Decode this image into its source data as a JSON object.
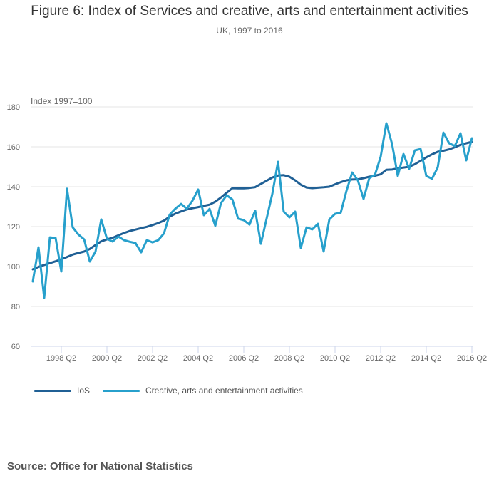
{
  "title": "Figure 6: Index of Services and creative, arts and entertainment activities",
  "subtitle": "UK, 1997 to 2016",
  "source": "Source: Office for National Statistics",
  "colors": {
    "ios": "#206095",
    "creative": "#27a0cc",
    "grid": "#e6e6e6",
    "axis": "#ccd6eb"
  },
  "legend": [
    {
      "name": "IoS",
      "color": "#206095"
    },
    {
      "name": "Creative, arts and entertainment activities",
      "color": "#27a0cc"
    }
  ],
  "chart_data": {
    "type": "line",
    "title": "Figure 6: Index of Services and creative, arts and entertainment activities",
    "subtitle": "UK, 1997 to 2016",
    "xlabel": "",
    "ylabel": "Index 1997=100",
    "ylim": [
      60,
      180
    ],
    "yticks": [
      60,
      80,
      100,
      120,
      140,
      160,
      180
    ],
    "x_start": "1997 Q1",
    "x_end": "2016 Q2",
    "xticks": [
      "1998 Q2",
      "2000 Q2",
      "2002 Q2",
      "2004 Q2",
      "2006 Q2",
      "2008 Q2",
      "2010 Q2",
      "2012 Q2",
      "2014 Q2",
      "2016 Q2"
    ],
    "grid": true,
    "legend_position": "bottom-left",
    "series": [
      {
        "name": "IoS",
        "values": [
          98.6,
          99.8,
          100.8,
          101.7,
          102.6,
          103.6,
          104.8,
          106.0,
          106.8,
          107.5,
          108.8,
          110.8,
          112.6,
          113.6,
          114.4,
          115.6,
          116.8,
          117.8,
          118.5,
          119.2,
          119.9,
          120.8,
          121.8,
          123.0,
          125.0,
          126.5,
          127.6,
          128.6,
          129.2,
          129.8,
          130.4,
          131.0,
          132.5,
          134.6,
          137.0,
          139.3,
          139.2,
          139.2,
          139.4,
          139.8,
          141.4,
          143.0,
          144.6,
          145.6,
          145.8,
          145.0,
          143.2,
          141.0,
          139.6,
          139.3,
          139.5,
          139.7,
          140.0,
          141.2,
          142.3,
          143.2,
          143.6,
          143.7,
          144.3,
          145.0,
          145.5,
          146.2,
          148.5,
          148.6,
          149.2,
          149.6,
          150.0,
          151.3,
          153.0,
          154.7,
          156.2,
          157.5,
          158.0,
          158.7,
          159.8,
          161.0,
          161.8,
          162.5
        ]
      },
      {
        "name": "Creative, arts and entertainment activities",
        "values": [
          92.5,
          109.6,
          84.3,
          114.6,
          114.3,
          97.5,
          139.0,
          119.6,
          116.0,
          113.6,
          102.5,
          107.5,
          123.6,
          113.9,
          112.5,
          115.0,
          113.2,
          112.4,
          111.8,
          107.1,
          113.2,
          112.1,
          113.2,
          116.6,
          126.0,
          129.0,
          131.4,
          129.0,
          133.0,
          138.6,
          125.7,
          128.9,
          120.4,
          131.8,
          135.7,
          133.6,
          124.0,
          123.2,
          121.0,
          128.0,
          111.4,
          124.0,
          136.4,
          152.5,
          127.5,
          124.6,
          127.5,
          109.3,
          119.6,
          118.6,
          121.4,
          107.5,
          123.6,
          126.4,
          127.0,
          137.9,
          147.1,
          143.2,
          133.9,
          144.3,
          146.0,
          155.0,
          171.8,
          161.4,
          145.4,
          156.4,
          149.0,
          158.2,
          158.9,
          145.4,
          144.0,
          149.6,
          167.1,
          161.8,
          160.4,
          166.8,
          153.2,
          164.3
        ]
      }
    ]
  }
}
